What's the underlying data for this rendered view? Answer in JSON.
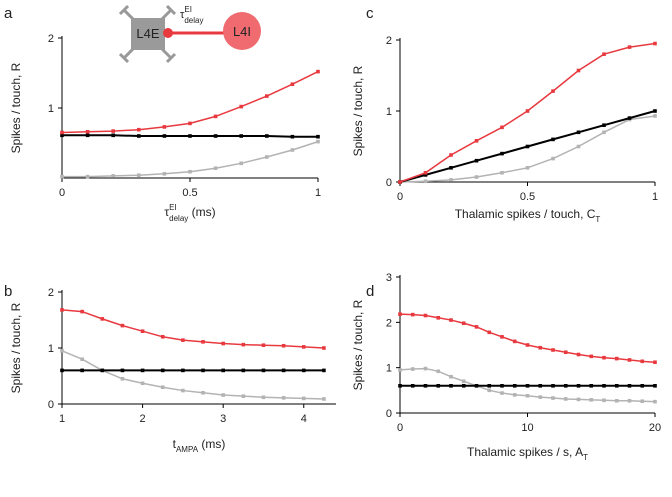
{
  "chart_data": [
    {
      "type": "line",
      "panel": "a",
      "ylabel": "Spikes / touch, R",
      "xlabel": {
        "text": "τ",
        "sup": "EI",
        "sub": "delay",
        "unit": " (ms)"
      },
      "diagram": {
        "source": "L4E",
        "target": "L4I",
        "edge_label": {
          "text": "τ",
          "sup": "EI",
          "sub": "delay"
        }
      },
      "x": [
        0,
        0.1,
        0.2,
        0.3,
        0.4,
        0.5,
        0.6,
        0.7,
        0.8,
        0.9,
        1
      ],
      "xlim": [
        0,
        1
      ],
      "ylim": [
        0,
        2
      ],
      "xticks": [
        0,
        0.5,
        1
      ],
      "yticks": [
        1,
        2
      ],
      "series": [
        {
          "color": "#b3b3b3",
          "values": [
            0.02,
            0.02,
            0.03,
            0.04,
            0.06,
            0.09,
            0.14,
            0.21,
            0.3,
            0.4,
            0.52
          ]
        },
        {
          "color": "#000000",
          "values": [
            0.61,
            0.61,
            0.61,
            0.6,
            0.6,
            0.6,
            0.6,
            0.6,
            0.6,
            0.59,
            0.59
          ]
        },
        {
          "color": "#e8393f",
          "values": [
            0.65,
            0.66,
            0.67,
            0.69,
            0.73,
            0.78,
            0.88,
            1.02,
            1.17,
            1.34,
            1.52
          ]
        }
      ]
    },
    {
      "type": "line",
      "panel": "b",
      "ylabel": "Spikes / touch, R",
      "xlabel": {
        "text": "t",
        "sub": "AMPA",
        "unit": "  (ms)"
      },
      "x": [
        1,
        1.25,
        1.5,
        1.75,
        2,
        2.25,
        2.5,
        2.75,
        3,
        3.25,
        3.5,
        3.75,
        4,
        4.25
      ],
      "xlim": [
        1,
        4.4
      ],
      "ylim": [
        0,
        2
      ],
      "xticks": [
        1,
        2,
        3,
        4
      ],
      "yticks": [
        0,
        1,
        2
      ],
      "series": [
        {
          "color": "#b3b3b3",
          "values": [
            0.95,
            0.8,
            0.6,
            0.45,
            0.37,
            0.3,
            0.24,
            0.2,
            0.16,
            0.14,
            0.12,
            0.11,
            0.1,
            0.09
          ]
        },
        {
          "color": "#000000",
          "values": [
            0.6,
            0.6,
            0.6,
            0.6,
            0.6,
            0.6,
            0.6,
            0.6,
            0.6,
            0.6,
            0.6,
            0.6,
            0.6,
            0.6
          ]
        },
        {
          "color": "#e8393f",
          "values": [
            1.68,
            1.65,
            1.52,
            1.4,
            1.3,
            1.2,
            1.14,
            1.11,
            1.08,
            1.06,
            1.05,
            1.04,
            1.02,
            1.0
          ]
        }
      ]
    },
    {
      "type": "line",
      "panel": "c",
      "ylabel": "Spikes / touch, R",
      "xlabel": {
        "text": "Thalamic spikes / touch, C",
        "sub": "T"
      },
      "x": [
        0,
        0.1,
        0.2,
        0.3,
        0.4,
        0.5,
        0.6,
        0.7,
        0.8,
        0.9,
        1
      ],
      "xlim": [
        0,
        1
      ],
      "ylim": [
        0,
        2
      ],
      "xticks": [
        0,
        0.5,
        1
      ],
      "yticks": [
        0,
        1,
        2
      ],
      "series": [
        {
          "color": "#b3b3b3",
          "values": [
            0,
            0.01,
            0.03,
            0.07,
            0.13,
            0.2,
            0.33,
            0.5,
            0.7,
            0.88,
            0.93
          ]
        },
        {
          "color": "#000000",
          "values": [
            0,
            0.1,
            0.2,
            0.3,
            0.4,
            0.5,
            0.6,
            0.7,
            0.8,
            0.9,
            1.0
          ]
        },
        {
          "color": "#e8393f",
          "values": [
            0,
            0.13,
            0.38,
            0.58,
            0.77,
            1.0,
            1.28,
            1.57,
            1.8,
            1.9,
            1.95
          ]
        }
      ]
    },
    {
      "type": "line",
      "panel": "d",
      "ylabel": "Spikes / touch, R",
      "xlabel": {
        "text": "Thalamic spikes / s, A",
        "sub": "T"
      },
      "x": [
        0,
        1,
        2,
        3,
        4,
        5,
        6,
        7,
        8,
        9,
        10,
        11,
        12,
        13,
        14,
        15,
        16,
        17,
        18,
        19,
        20
      ],
      "xlim": [
        0,
        20
      ],
      "ylim": [
        0,
        3
      ],
      "xticks": [
        0,
        10,
        20
      ],
      "yticks": [
        0,
        1,
        2,
        3
      ],
      "series": [
        {
          "color": "#b3b3b3",
          "values": [
            0.95,
            0.97,
            0.98,
            0.92,
            0.8,
            0.7,
            0.6,
            0.5,
            0.44,
            0.4,
            0.38,
            0.35,
            0.33,
            0.31,
            0.3,
            0.29,
            0.28,
            0.27,
            0.27,
            0.26,
            0.25
          ]
        },
        {
          "color": "#000000",
          "values": [
            0.6,
            0.6,
            0.6,
            0.6,
            0.6,
            0.6,
            0.6,
            0.6,
            0.6,
            0.6,
            0.6,
            0.6,
            0.6,
            0.6,
            0.6,
            0.6,
            0.6,
            0.6,
            0.6,
            0.6,
            0.6
          ]
        },
        {
          "color": "#e8393f",
          "values": [
            2.18,
            2.17,
            2.15,
            2.1,
            2.05,
            1.98,
            1.9,
            1.78,
            1.68,
            1.58,
            1.5,
            1.44,
            1.39,
            1.34,
            1.29,
            1.25,
            1.22,
            1.2,
            1.17,
            1.14,
            1.12
          ]
        }
      ]
    }
  ]
}
